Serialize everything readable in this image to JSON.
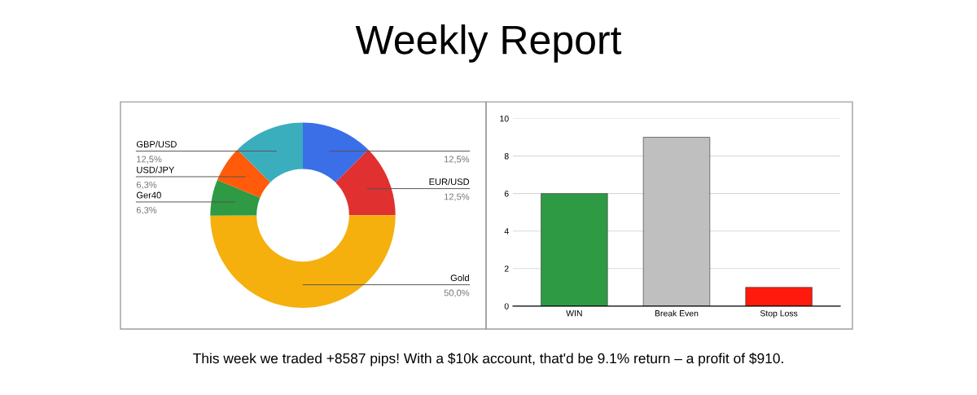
{
  "chart_data": [
    {
      "type": "donut",
      "title": "Weekly Report",
      "annotations": [
        "This week we traded +8587 pips! With a $10k account, that'd be 9.1% return – a profit of $910."
      ],
      "categories": [
        null,
        "EUR/USD",
        "Gold",
        "Ger40",
        "USD/JPY",
        "GBP/USD"
      ],
      "values": [
        12.5,
        12.5,
        50.0,
        6.3,
        6.3,
        12.5
      ],
      "value_labels": [
        "12,5%",
        "12,5%",
        "50,0%",
        "6,3%",
        "6,3%",
        "12,5%"
      ],
      "colors": [
        "#3a6fe8",
        "#e03030",
        "#f5b00e",
        "#2e9a44",
        "#ff5b0a",
        "#3aaebc"
      ]
    },
    {
      "type": "bar",
      "categories": [
        "WIN",
        "Break Even",
        "Stop Loss"
      ],
      "values": [
        6,
        9,
        1
      ],
      "colors": [
        "#2e9a44",
        "#bfbfbf",
        "#ff1a0d"
      ],
      "ylim": [
        0,
        10
      ],
      "yticks": [
        0,
        2,
        4,
        6,
        8,
        10
      ],
      "grid": "y"
    }
  ]
}
